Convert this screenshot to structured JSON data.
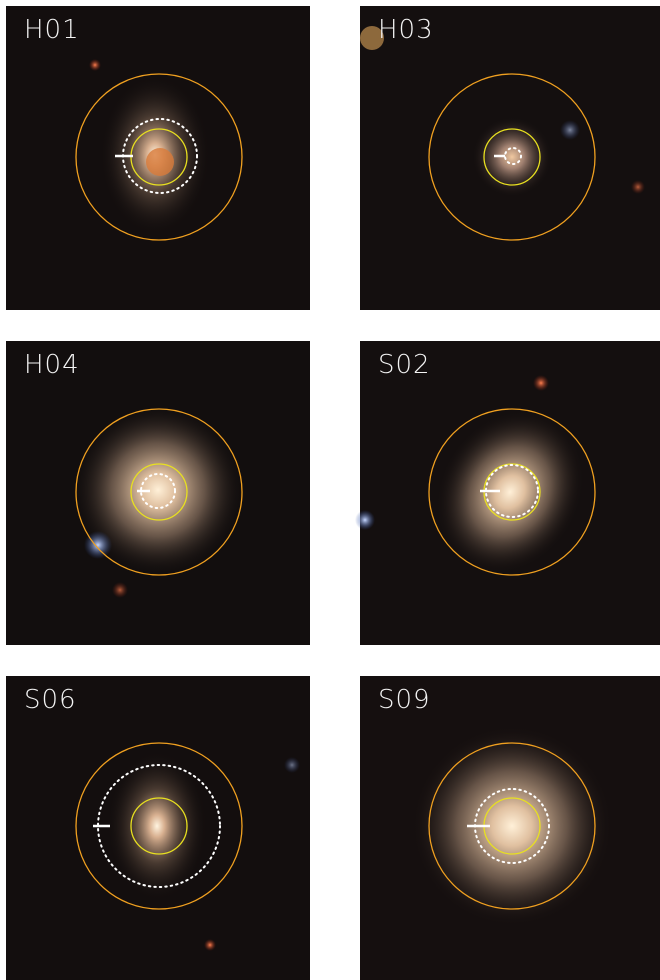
{
  "panels": [
    {
      "label": "H01"
    },
    {
      "label": "H03"
    },
    {
      "label": "H04"
    },
    {
      "label": "S02"
    },
    {
      "label": "S06"
    },
    {
      "label": "S09"
    }
  ]
}
